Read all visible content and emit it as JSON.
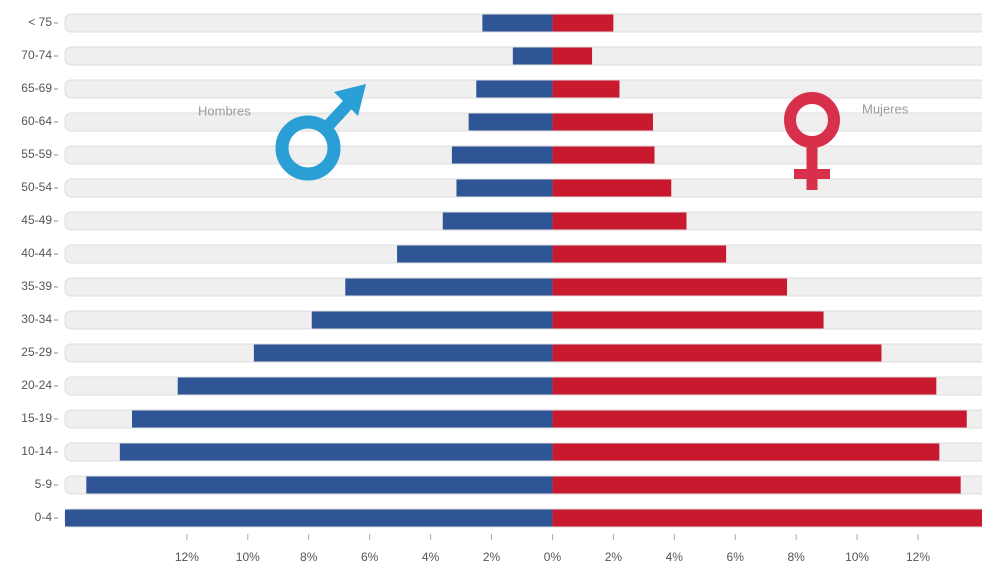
{
  "chart_data": {
    "type": "pyramid",
    "categories": [
      "0-4",
      "5-9",
      "10-14",
      "15-19",
      "20-24",
      "25-29",
      "30-34",
      "35-39",
      "40-44",
      "45-49",
      "50-54",
      "55-59",
      "60-64",
      "65-69",
      "70-74",
      "< 75"
    ],
    "series": [
      {
        "name": "Hombres",
        "color": "#2f5597",
        "values": [
          -16,
          -15.3,
          -14.2,
          -13.8,
          -12.3,
          -9.8,
          -7.9,
          -6.8,
          -5.1,
          -3.6,
          -3.15,
          -3.3,
          -2.75,
          -2.5,
          -1.3,
          -2.3
        ]
      },
      {
        "name": "Mujeres",
        "color": "#c8192e",
        "values": [
          14.1,
          13.4,
          12.7,
          13.6,
          12.6,
          10.8,
          8.9,
          7.7,
          5.7,
          4.4,
          3.9,
          3.35,
          3.3,
          2.2,
          1.3,
          2.0
        ]
      }
    ],
    "xlim": [
      -16,
      14.1
    ],
    "xticks": [
      {
        "value": -12,
        "label": "12%"
      },
      {
        "value": -10,
        "label": "10%"
      },
      {
        "value": -8,
        "label": "8%"
      },
      {
        "value": -6,
        "label": "6%"
      },
      {
        "value": -4,
        "label": "4%"
      },
      {
        "value": -2,
        "label": "2%"
      },
      {
        "value": 0,
        "label": "0%"
      },
      {
        "value": 2,
        "label": "2%"
      },
      {
        "value": 4,
        "label": "4%"
      },
      {
        "value": 6,
        "label": "6%"
      },
      {
        "value": 8,
        "label": "8%"
      },
      {
        "value": 10,
        "label": "10%"
      },
      {
        "value": 12,
        "label": "12%"
      }
    ]
  }
}
